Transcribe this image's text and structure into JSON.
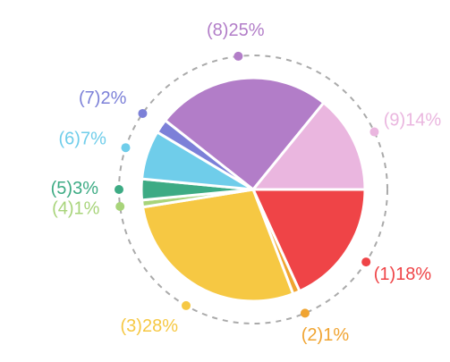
{
  "chart_data": {
    "type": "pie",
    "categories": [
      "(1)",
      "(2)",
      "(3)",
      "(4)",
      "(5)",
      "(6)",
      "(7)",
      "(8)",
      "(9)"
    ],
    "values": [
      18,
      1,
      28,
      1,
      3,
      7,
      2,
      25,
      14
    ],
    "value_labels": [
      "18%",
      "1%",
      "28%",
      "1%",
      "3%",
      "7%",
      "2%",
      "25%",
      "14%"
    ],
    "colors": [
      "#ef4447",
      "#f0a431",
      "#f6c843",
      "#a8d47a",
      "#3dab84",
      "#6fcdea",
      "#7c80d8",
      "#b27dc8",
      "#eab6df"
    ]
  }
}
